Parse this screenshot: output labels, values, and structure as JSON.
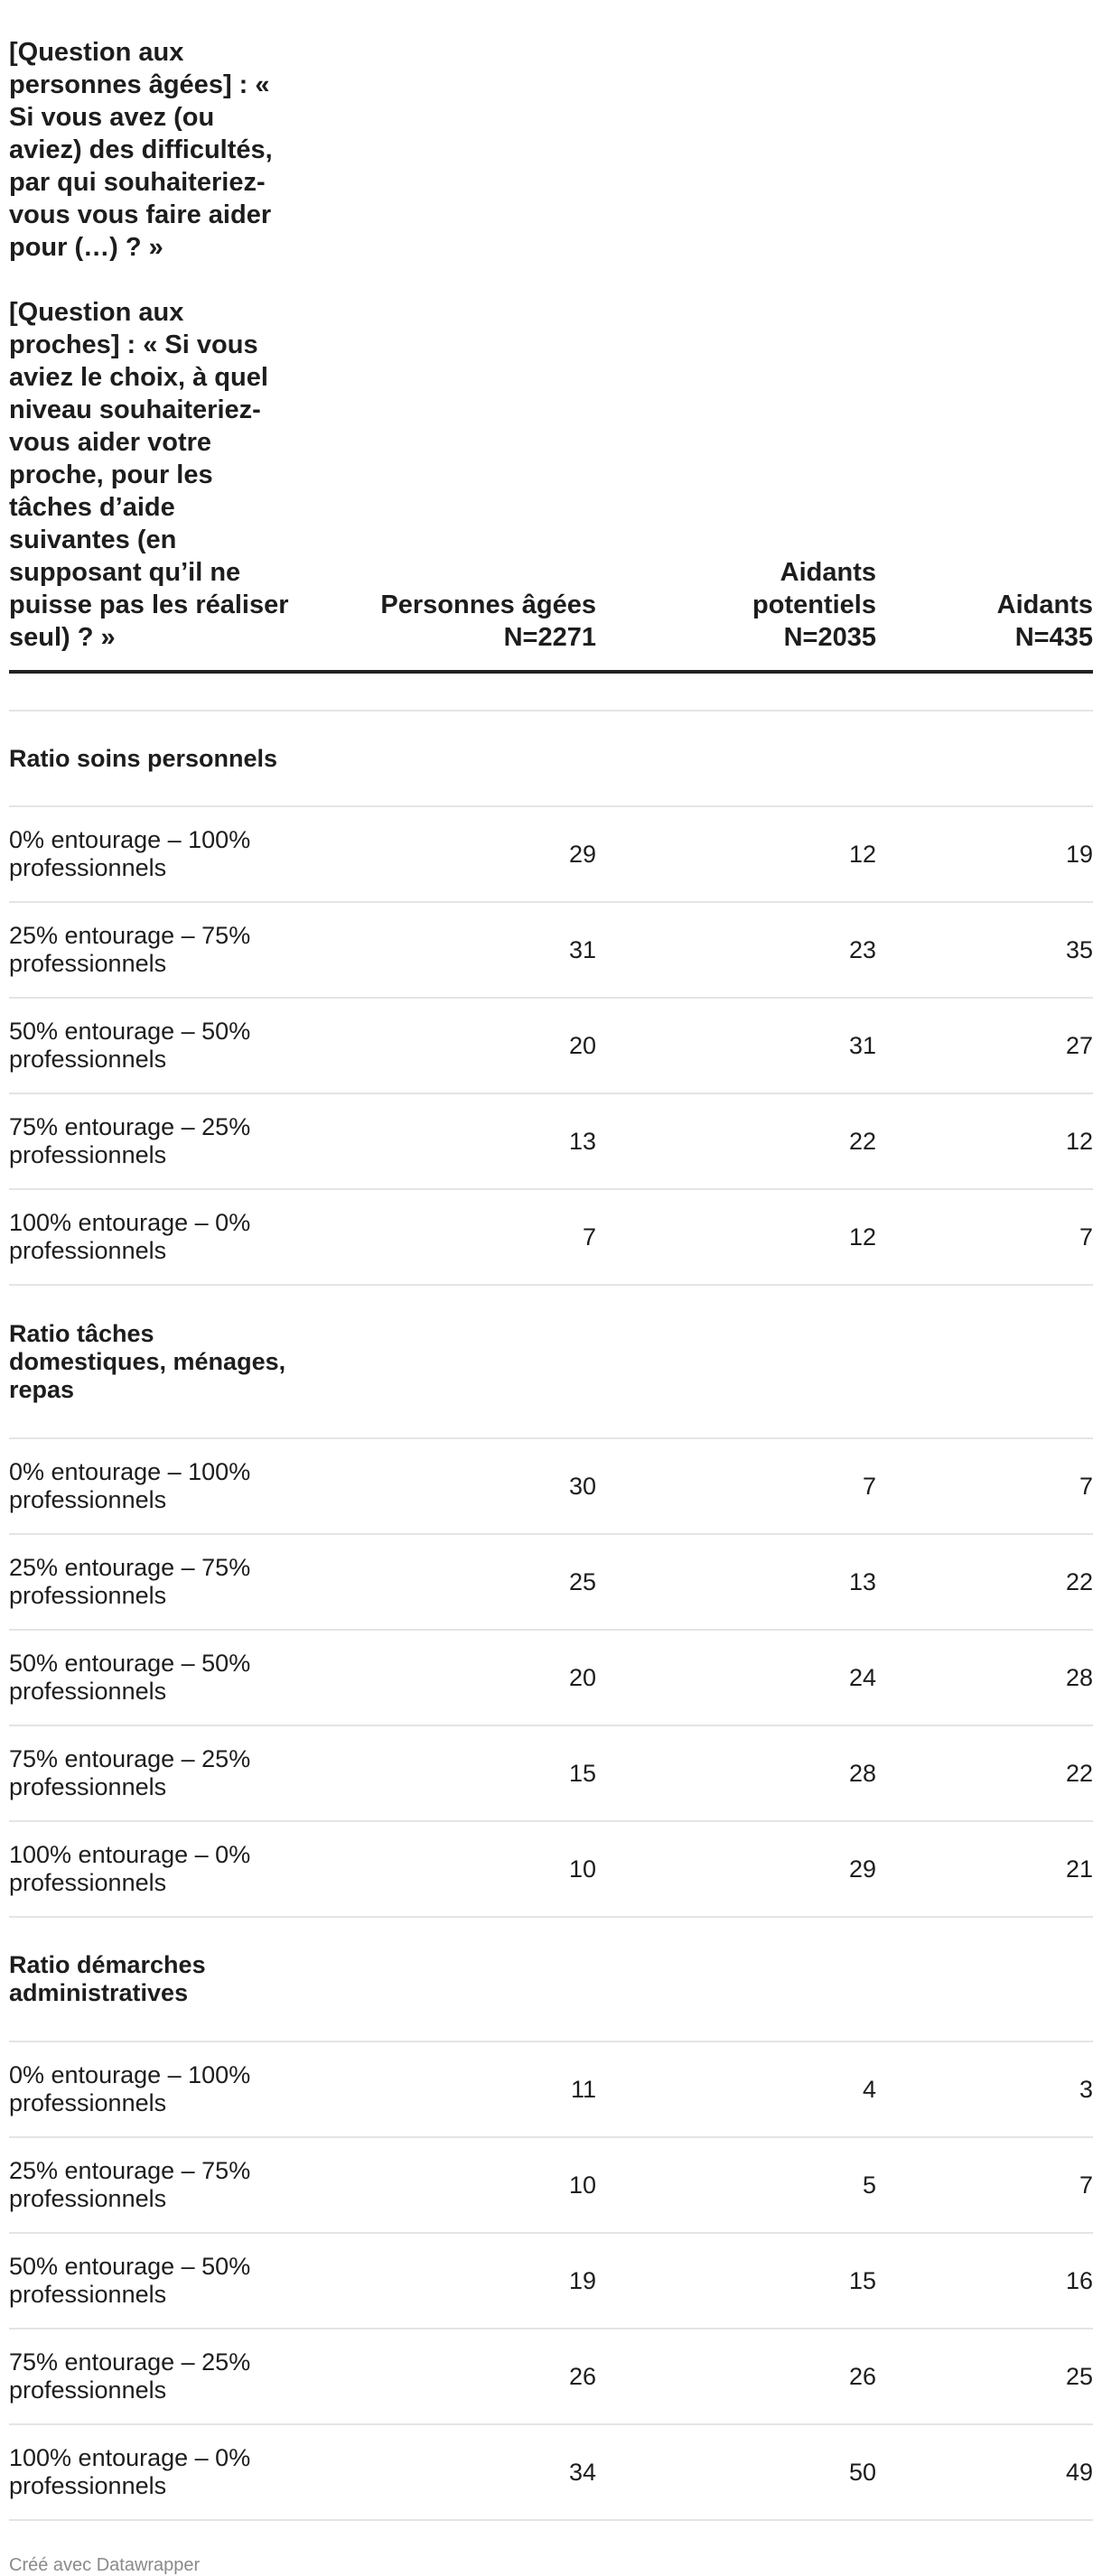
{
  "chart_data": {
    "type": "table",
    "header": {
      "question_seniors": "[Question aux personnes âgées] : « Si vous avez (ou aviez) des difficultés, par qui souhaiteriez-vous vous faire aider pour (…) ? »",
      "question_relatives": "[Question aux proches] : « Si vous aviez le choix, à quel niveau souhaiteriez-vous aider votre proche, pour les tâches d’aide suivantes (en supposant qu’il ne puisse pas les réaliser seul) ? »",
      "columns": [
        {
          "line1": "Personnes âgées",
          "line2": "N=2271"
        },
        {
          "line1": "Aidants potentiels",
          "line2": "N=2035"
        },
        {
          "line1": "Aidants",
          "line2": "N=435"
        }
      ]
    },
    "groups": [
      {
        "title": "Ratio soins personnels",
        "rows": [
          {
            "label": "0% entourage – 100% professionnels",
            "values": [
              "29",
              "12",
              "19"
            ]
          },
          {
            "label": "25% entourage – 75% professionnels",
            "values": [
              "31",
              "23",
              "35"
            ]
          },
          {
            "label": "50% entourage – 50% professionnels",
            "values": [
              "20",
              "31",
              "27"
            ]
          },
          {
            "label": "75% entourage – 25% professionnels",
            "values": [
              "13",
              "22",
              "12"
            ]
          },
          {
            "label": "100% entourage – 0% professionnels",
            "values": [
              "7",
              "12",
              "7"
            ]
          }
        ]
      },
      {
        "title": "Ratio tâches domestiques, ménages, repas",
        "rows": [
          {
            "label": "0% entourage – 100% professionnels",
            "values": [
              "30",
              "7",
              "7"
            ]
          },
          {
            "label": "25% entourage – 75% professionnels",
            "values": [
              "25",
              "13",
              "22"
            ]
          },
          {
            "label": "50% entourage – 50% professionnels",
            "values": [
              "20",
              "24",
              "28"
            ]
          },
          {
            "label": "75% entourage – 25% professionnels",
            "values": [
              "15",
              "28",
              "22"
            ]
          },
          {
            "label": "100% entourage – 0% professionnels",
            "values": [
              "10",
              "29",
              "21"
            ]
          }
        ]
      },
      {
        "title": "Ratio démarches administratives",
        "rows": [
          {
            "label": "0% entourage – 100% professionnels",
            "values": [
              "11",
              "4",
              "3"
            ]
          },
          {
            "label": "25% entourage – 75% professionnels",
            "values": [
              "10",
              "5",
              "7"
            ]
          },
          {
            "label": "50% entourage – 50% professionnels",
            "values": [
              "19",
              "15",
              "16"
            ]
          },
          {
            "label": "75% entourage – 25% professionnels",
            "values": [
              "26",
              "26",
              "25"
            ]
          },
          {
            "label": "100% entourage – 0% professionnels",
            "values": [
              "34",
              "50",
              "49"
            ]
          }
        ]
      }
    ]
  },
  "footer": {
    "credit": "Créé avec Datawrapper"
  }
}
